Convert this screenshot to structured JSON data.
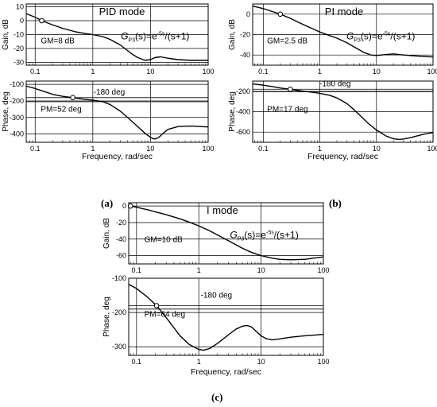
{
  "captions": [
    "(a)",
    "(b)",
    "(c)"
  ],
  "chart_data": [
    {
      "type": "line",
      "panel": "a",
      "mode_label": "PID mode",
      "plant_label": {
        "G": "G",
        "sub": "P3",
        "rest": "(s)=e",
        "exp": "-5s",
        "tail": "/(s+1)"
      },
      "xlabel": "Frequency, rad/sec",
      "xscale": "log",
      "xlim": [
        0.07,
        100
      ],
      "xticks": [
        0.1,
        1,
        10,
        100
      ],
      "xtick_labels": [
        "0.1",
        "1",
        "10",
        "100"
      ],
      "gain": {
        "ylabel": "Gain, dB",
        "ylim": [
          -32,
          12
        ],
        "yticks": [
          10,
          0,
          -10,
          -20,
          -30
        ],
        "ytick_labels": [
          "10",
          "0",
          "-10",
          "-20",
          "-30"
        ],
        "annotation": "GM=8 dB",
        "marker": [
          0.13,
          0
        ],
        "x": [
          0.07,
          0.1,
          0.13,
          0.2,
          0.3,
          0.5,
          0.8,
          1,
          1.5,
          2,
          3,
          4,
          5,
          6,
          8,
          10,
          12,
          15,
          20,
          30,
          50,
          100
        ],
        "y": [
          5,
          2.5,
          0,
          -3,
          -5.5,
          -8,
          -9.5,
          -10,
          -11.5,
          -13.5,
          -17.5,
          -21.5,
          -24.5,
          -26.5,
          -28.5,
          -28,
          -26.5,
          -26,
          -27,
          -28,
          -28.5,
          -28.5
        ]
      },
      "phase": {
        "ylabel": "Phase, deg",
        "ylim": [
          -450,
          -80
        ],
        "yticks": [
          -100,
          -200,
          -300,
          -400
        ],
        "ytick_labels": [
          "-100",
          "-200",
          "-300",
          "-400"
        ],
        "annotation": "PM=52 deg",
        "ref_label": "-180 deg",
        "ref_lines": [
          -180,
          -205
        ],
        "marker": [
          0.45,
          -180
        ],
        "x": [
          0.07,
          0.1,
          0.15,
          0.2,
          0.3,
          0.45,
          0.7,
          1,
          1.5,
          2,
          3,
          4,
          5,
          6,
          8,
          10,
          11,
          12,
          14,
          17,
          20,
          30,
          50,
          100
        ],
        "y": [
          -110,
          -125,
          -145,
          -160,
          -172,
          -180,
          -190,
          -195,
          -205,
          -222,
          -262,
          -300,
          -330,
          -355,
          -395,
          -420,
          -428,
          -430,
          -420,
          -392,
          -372,
          -355,
          -352,
          -357
        ]
      }
    },
    {
      "type": "line",
      "panel": "b",
      "mode_label": "PI mode",
      "plant_label": {
        "G": "G",
        "sub": "P3",
        "rest": "(s)=e",
        "exp": "-5s",
        "tail": "/(s+1)"
      },
      "xlabel": "Frequency, rad/sec",
      "xscale": "log",
      "xlim": [
        0.065,
        100
      ],
      "xticks": [
        0.1,
        1,
        10,
        100
      ],
      "xtick_labels": [
        "0.1",
        "1",
        "10",
        "100"
      ],
      "gain": {
        "ylabel": "Gain, dB",
        "ylim": [
          -50,
          10
        ],
        "yticks": [
          0,
          -20,
          -40
        ],
        "ytick_labels": [
          "0",
          "-20",
          "-40"
        ],
        "annotation": "GM=2.5 dB",
        "marker": [
          0.2,
          0
        ],
        "x": [
          0.065,
          0.1,
          0.2,
          0.3,
          0.5,
          0.8,
          1,
          1.5,
          2,
          3,
          4,
          5,
          6,
          8,
          10,
          15,
          20,
          30,
          50,
          100
        ],
        "y": [
          8,
          5.5,
          0,
          -4,
          -10,
          -15,
          -17.5,
          -21,
          -23.5,
          -28,
          -32,
          -35,
          -37.5,
          -40,
          -40.5,
          -39.5,
          -39,
          -40,
          -41,
          -42
        ]
      },
      "phase": {
        "ylabel": "Phase, deg",
        "ylim": [
          -700,
          -100
        ],
        "yticks": [
          -200,
          -400,
          -600
        ],
        "ytick_labels": [
          "-200",
          "-400",
          "-600"
        ],
        "annotation": "PM=17 deg",
        "ref_label": "-180 deg",
        "ref_lines": [
          -180,
          -205
        ],
        "marker": [
          0.3,
          -180
        ],
        "x": [
          0.065,
          0.1,
          0.15,
          0.2,
          0.3,
          0.5,
          0.8,
          1,
          1.5,
          2,
          3,
          4,
          5,
          7,
          10,
          15,
          20,
          25,
          30,
          40,
          50,
          70,
          100
        ],
        "y": [
          -128,
          -140,
          -155,
          -168,
          -180,
          -198,
          -212,
          -220,
          -240,
          -265,
          -320,
          -380,
          -430,
          -510,
          -580,
          -640,
          -665,
          -672,
          -668,
          -655,
          -640,
          -620,
          -605
        ]
      }
    },
    {
      "type": "line",
      "panel": "c",
      "mode_label": "I mode",
      "plant_label": {
        "G": "G",
        "sub": "P3",
        "rest": "(s)=e",
        "exp": "-5s",
        "tail": "/(s+1)"
      },
      "xlabel": "Frequency, rad/sec",
      "xscale": "log",
      "xlim": [
        0.075,
        100
      ],
      "xticks": [
        0.1,
        1,
        10,
        100
      ],
      "xtick_labels": [
        "0.1",
        "1",
        "10",
        "100"
      ],
      "gain": {
        "ylabel": "Gain, dB",
        "ylim": [
          -70,
          4
        ],
        "yticks": [
          0,
          -20,
          -40,
          -60
        ],
        "ytick_labels": [
          "0",
          "-20",
          "-40",
          "-60"
        ],
        "annotation": "GM=10 dB",
        "marker": [
          0.08,
          0
        ],
        "x": [
          0.075,
          0.08,
          0.1,
          0.15,
          0.2,
          0.3,
          0.5,
          0.7,
          1,
          1.5,
          2,
          3,
          5,
          7,
          10,
          15,
          20,
          30,
          50,
          70,
          100
        ],
        "y": [
          0.5,
          0,
          -1.5,
          -4.5,
          -7,
          -10.5,
          -15.5,
          -19.5,
          -24,
          -30,
          -35,
          -42,
          -51,
          -56,
          -60,
          -63,
          -64.5,
          -65,
          -64.5,
          -63,
          -61.5
        ]
      },
      "phase": {
        "ylabel": "Phase, deg",
        "ylim": [
          -325,
          -100
        ],
        "yticks": [
          -100,
          -200,
          -300
        ],
        "ytick_labels": [
          "-100",
          "-200",
          "-300"
        ],
        "annotation": "PM=64 deg",
        "ref_label": "-180 deg",
        "ref_lines": [
          -180,
          -190
        ],
        "marker": [
          0.21,
          -180
        ],
        "x": [
          0.075,
          0.1,
          0.15,
          0.21,
          0.3,
          0.4,
          0.5,
          0.7,
          1,
          1.2,
          1.5,
          2,
          3,
          4,
          5,
          6,
          7,
          8,
          10,
          12,
          15,
          20,
          30,
          50,
          100
        ],
        "y": [
          -118,
          -130,
          -155,
          -180,
          -215,
          -245,
          -268,
          -293,
          -308,
          -310,
          -305,
          -290,
          -265,
          -248,
          -240,
          -238,
          -242,
          -252,
          -268,
          -276,
          -280,
          -277,
          -272,
          -268,
          -264
        ]
      }
    }
  ]
}
